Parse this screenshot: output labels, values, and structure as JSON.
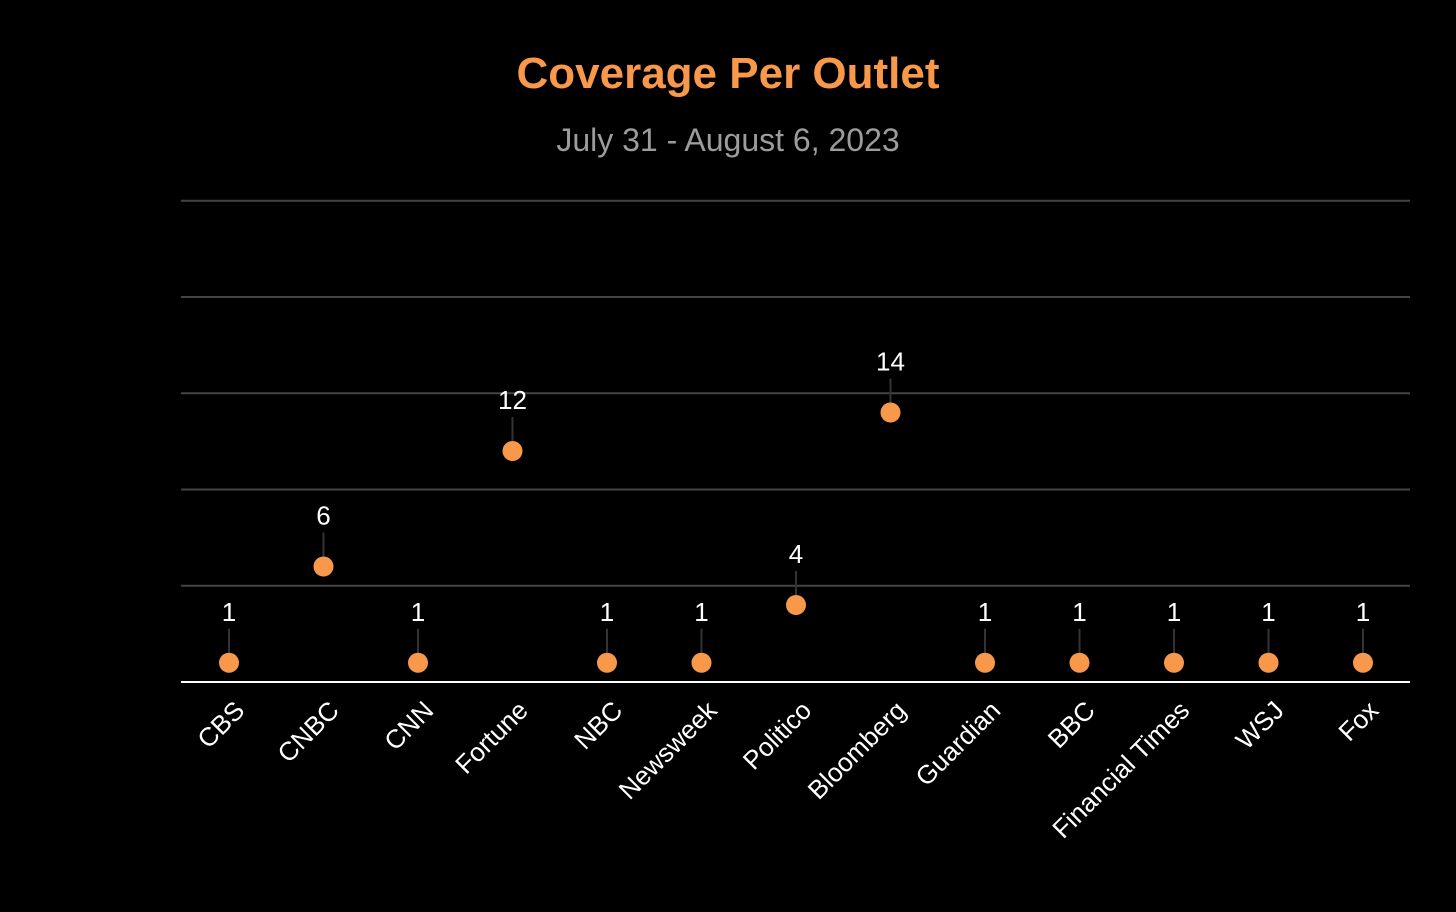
{
  "colors": {
    "background": "#000000",
    "title": "#F7984A",
    "subtitle": "#9C9C9C",
    "marker": "#F7984A",
    "gridline": "#444444",
    "axis": "#FFFFFF",
    "label": "#FFFFFF",
    "stem": "#333333"
  },
  "chart_data": {
    "type": "scatter",
    "style": "lollipop",
    "title": "Coverage Per Outlet",
    "subtitle": "July 31 - August 6, 2023",
    "xlabel": "",
    "ylabel": "",
    "categories": [
      "CBS",
      "CNBC",
      "CNN",
      "Fortune",
      "NBC",
      "Newsweek",
      "Politico",
      "Bloomberg",
      "Guardian",
      "BBC",
      "Financial Times",
      "WSJ",
      "Fox"
    ],
    "values": [
      1,
      6,
      1,
      12,
      1,
      1,
      4,
      14,
      1,
      1,
      1,
      1,
      1
    ],
    "y_min": 0,
    "y_max": 25,
    "ylim": [
      0,
      25
    ],
    "y_gridlines": [
      5,
      10,
      15,
      20,
      25
    ],
    "y_tick_labels_shown": false,
    "x_tick_label_rotation": -45,
    "data_labels": true,
    "grid": true,
    "legend": "none"
  }
}
